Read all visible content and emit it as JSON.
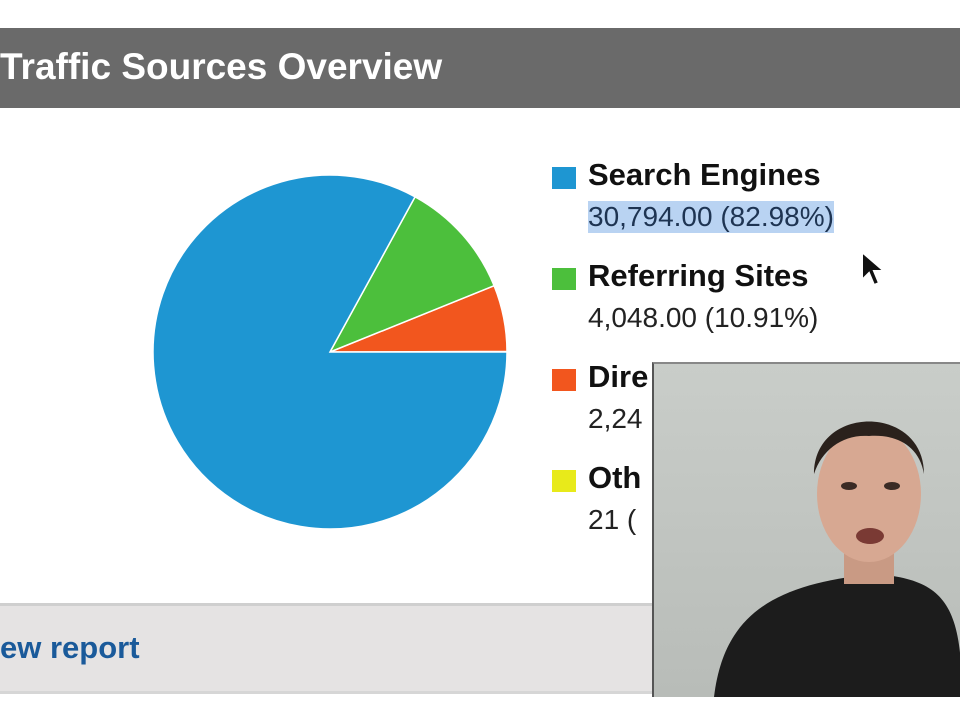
{
  "header": {
    "title": "Traffic Sources Overview"
  },
  "footer": {
    "link_label": "ew report"
  },
  "chart_data": {
    "type": "pie",
    "title": "Traffic Sources Overview",
    "slices": [
      {
        "name": "Search Engines",
        "value": 30794,
        "label": "30,794.00 (82.98%)",
        "color": "#1e96d2",
        "percent": 82.98
      },
      {
        "name": "Referring Sites",
        "value": 4048,
        "label": "4,048.00 (10.91%)",
        "color": "#4cbf3c",
        "percent": 10.91
      },
      {
        "name": "Dire",
        "value": 2247,
        "label": "2,24",
        "color": "#f2561e",
        "percent": 6.05
      },
      {
        "name": "Oth",
        "value": 21,
        "label": "21 (",
        "color": "#e8ea1a",
        "percent": 0.06
      }
    ],
    "legend": "right"
  },
  "icons": {
    "cursor": "mouse-pointer-icon",
    "webcam": "webcam-video-overlay"
  }
}
